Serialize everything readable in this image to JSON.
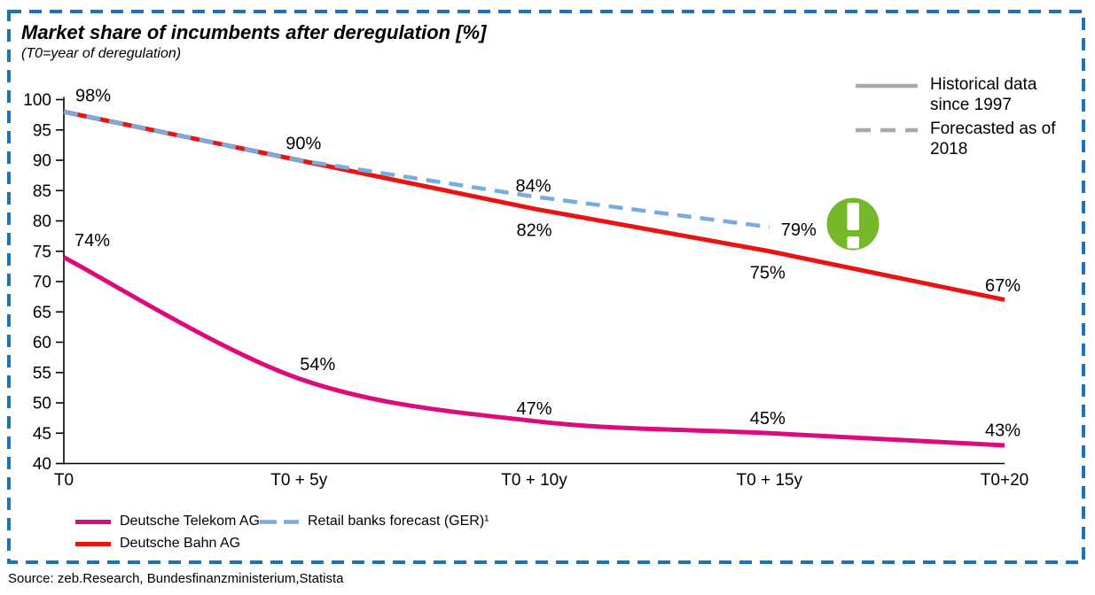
{
  "header": {
    "title": "Market share of incumbents after deregulation [%]",
    "subtitle": "(T0=year of deregulation)"
  },
  "colors": {
    "border": "#1B73B8",
    "telekom": "#DE0A7D",
    "bahn": "#ED1212",
    "forecast": "#77ACE1",
    "legend_gray": "#A8A8A8",
    "badge_green": "#77B82B",
    "axis": "#000000"
  },
  "legend_top": {
    "items": [
      {
        "style": "solid",
        "label": "Historical data since 1997"
      },
      {
        "style": "dashed",
        "label": "Forecasted as of 2018"
      }
    ]
  },
  "legend_bottom": {
    "items": [
      {
        "series": "telekom",
        "label": "Deutsche Telekom AG"
      },
      {
        "series": "forecast",
        "label": "Retail banks forecast (GER)¹"
      },
      {
        "series": "bahn",
        "label": "Deutsche Bahn AG"
      }
    ]
  },
  "footer": {
    "source": "Source: zeb.Research, Bundesfinanzministerium,Statista"
  },
  "chart_data": {
    "type": "line",
    "title": "Market share of incumbents after deregulation [%]",
    "xlabel": "",
    "ylabel": "",
    "x_tick_labels": [
      "T0",
      "T0 + 5y",
      "T0 + 10y",
      "T0 + 15y",
      "T0+20"
    ],
    "x_years": [
      0,
      5,
      10,
      15,
      20
    ],
    "ylim": [
      40,
      100
    ],
    "yticks": [
      40,
      45,
      50,
      55,
      60,
      65,
      70,
      75,
      80,
      85,
      90,
      95,
      100
    ],
    "grid": false,
    "legend_position": "bottom-left and top-right",
    "series": [
      {
        "name": "Deutsche Bahn AG",
        "color_key": "bahn",
        "dash": "solid",
        "smooth": false,
        "x": [
          0,
          5,
          10,
          15,
          20
        ],
        "values": [
          98,
          90,
          82,
          75,
          67
        ],
        "point_labels": [
          "98%",
          "90%",
          "82%",
          "75%",
          "67%"
        ],
        "label_offsets": [
          [
            33,
            -18
          ],
          [
            5,
            -19
          ],
          [
            0,
            24
          ],
          [
            -2,
            24
          ],
          [
            -2,
            -16
          ]
        ]
      },
      {
        "name": "Deutsche Telekom AG",
        "color_key": "telekom",
        "dash": "solid",
        "smooth": true,
        "x": [
          0,
          5,
          10,
          15,
          20
        ],
        "values": [
          74,
          54,
          47,
          45,
          43
        ],
        "point_labels": [
          "74%",
          "54%",
          "47%",
          "45%",
          "43%"
        ],
        "label_offsets": [
          [
            32,
            -19
          ],
          [
            21,
            -16
          ],
          [
            0,
            -14
          ],
          [
            -2,
            -17
          ],
          [
            -2,
            -17
          ]
        ]
      },
      {
        "name": "Retail banks forecast (GER)¹",
        "color_key": "forecast",
        "dash": "dashed",
        "smooth": false,
        "x": [
          0,
          5,
          10,
          15
        ],
        "values": [
          98,
          90,
          84,
          79
        ],
        "point_labels": [
          "",
          "",
          "84%",
          "79%"
        ],
        "label_offsets": [
          [
            0,
            0
          ],
          [
            0,
            0
          ],
          [
            -1,
            -12
          ],
          [
            33,
            3
          ]
        ]
      }
    ],
    "annotation": {
      "type": "exclamation-badge",
      "color_key": "badge_green"
    }
  }
}
